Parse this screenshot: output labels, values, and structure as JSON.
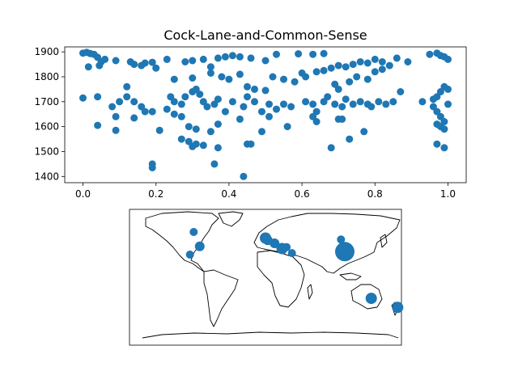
{
  "chart_data": [
    {
      "type": "scatter",
      "title": "Cock-Lane-and-Common-Sense",
      "xlabel": "",
      "ylabel": "",
      "xlim": [
        -0.05,
        1.05
      ],
      "ylim": [
        1375,
        1920
      ],
      "xticks": [
        "0.0",
        "0.2",
        "0.4",
        "0.6",
        "0.8",
        "1.0"
      ],
      "yticks": [
        "1400",
        "1500",
        "1600",
        "1700",
        "1800",
        "1900"
      ],
      "grid": false,
      "color": "#1f77b4",
      "points": [
        [
          0.0,
          1895
        ],
        [
          0.01,
          1898
        ],
        [
          0.02,
          1893
        ],
        [
          0.03,
          1890
        ],
        [
          0.04,
          1878
        ],
        [
          0.05,
          1860
        ],
        [
          0.06,
          1870
        ],
        [
          0.015,
          1840
        ],
        [
          0.045,
          1845
        ],
        [
          0.09,
          1865
        ],
        [
          0.13,
          1860
        ],
        [
          0.14,
          1850
        ],
        [
          0.16,
          1845
        ],
        [
          0.17,
          1855
        ],
        [
          0.19,
          1858
        ],
        [
          0.2,
          1835
        ],
        [
          0.23,
          1870
        ],
        [
          0.28,
          1860
        ],
        [
          0.3,
          1865
        ],
        [
          0.33,
          1870
        ],
        [
          0.35,
          1840
        ],
        [
          0.37,
          1875
        ],
        [
          0.39,
          1880
        ],
        [
          0.41,
          1885
        ],
        [
          0.43,
          1880
        ],
        [
          0.46,
          1875
        ],
        [
          0.5,
          1865
        ],
        [
          0.53,
          1890
        ],
        [
          0.59,
          1892
        ],
        [
          0.63,
          1890
        ],
        [
          0.66,
          1893
        ],
        [
          0.64,
          1820
        ],
        [
          0.66,
          1825
        ],
        [
          0.68,
          1835
        ],
        [
          0.7,
          1845
        ],
        [
          0.72,
          1840
        ],
        [
          0.74,
          1850
        ],
        [
          0.76,
          1860
        ],
        [
          0.78,
          1855
        ],
        [
          0.8,
          1870
        ],
        [
          0.82,
          1860
        ],
        [
          0.84,
          1845
        ],
        [
          0.86,
          1875
        ],
        [
          0.89,
          1860
        ],
        [
          0.95,
          1890
        ],
        [
          0.97,
          1895
        ],
        [
          0.98,
          1885
        ],
        [
          0.99,
          1880
        ],
        [
          1.0,
          1870
        ],
        [
          0.35,
          1815
        ],
        [
          0.38,
          1800
        ],
        [
          0.4,
          1790
        ],
        [
          0.43,
          1810
        ],
        [
          0.3,
          1795
        ],
        [
          0.25,
          1790
        ],
        [
          0.45,
          1760
        ],
        [
          0.47,
          1750
        ],
        [
          0.5,
          1745
        ],
        [
          0.52,
          1800
        ],
        [
          0.55,
          1790
        ],
        [
          0.58,
          1780
        ],
        [
          0.6,
          1815
        ],
        [
          0.61,
          1800
        ],
        [
          0.69,
          1770
        ],
        [
          0.7,
          1750
        ],
        [
          0.73,
          1780
        ],
        [
          0.75,
          1800
        ],
        [
          0.78,
          1790
        ],
        [
          0.8,
          1820
        ],
        [
          0.82,
          1830
        ],
        [
          0.87,
          1740
        ],
        [
          0.93,
          1700
        ],
        [
          0.96,
          1710
        ],
        [
          0.97,
          1720
        ],
        [
          0.98,
          1740
        ],
        [
          0.99,
          1760
        ],
        [
          1.0,
          1750
        ],
        [
          0.12,
          1760
        ],
        [
          0.1,
          1700
        ],
        [
          0.08,
          1680
        ],
        [
          0.12,
          1720
        ],
        [
          0.14,
          1700
        ],
        [
          0.16,
          1680
        ],
        [
          0.17,
          1660
        ],
        [
          0.24,
          1720
        ],
        [
          0.25,
          1700
        ],
        [
          0.27,
          1690
        ],
        [
          0.28,
          1720
        ],
        [
          0.3,
          1740
        ],
        [
          0.31,
          1750
        ],
        [
          0.32,
          1730
        ],
        [
          0.33,
          1700
        ],
        [
          0.34,
          1680
        ],
        [
          0.36,
          1690
        ],
        [
          0.37,
          1710
        ],
        [
          0.39,
          1660
        ],
        [
          0.41,
          1700
        ],
        [
          0.44,
          1680
        ],
        [
          0.45,
          1720
        ],
        [
          0.47,
          1700
        ],
        [
          0.49,
          1660
        ],
        [
          0.51,
          1690
        ],
        [
          0.53,
          1670
        ],
        [
          0.55,
          1690
        ],
        [
          0.57,
          1680
        ],
        [
          0.61,
          1700
        ],
        [
          0.63,
          1690
        ],
        [
          0.64,
          1660
        ],
        [
          0.66,
          1700
        ],
        [
          0.67,
          1720
        ],
        [
          0.69,
          1690
        ],
        [
          0.71,
          1680
        ],
        [
          0.72,
          1710
        ],
        [
          0.74,
          1690
        ],
        [
          0.76,
          1700
        ],
        [
          0.78,
          1690
        ],
        [
          0.79,
          1680
        ],
        [
          0.81,
          1700
        ],
        [
          0.83,
          1690
        ],
        [
          0.85,
          1700
        ],
        [
          0.96,
          1680
        ],
        [
          0.97,
          1660
        ],
        [
          0.98,
          1640
        ],
        [
          0.99,
          1620
        ],
        [
          1.0,
          1690
        ],
        [
          0.04,
          1720
        ],
        [
          0.0,
          1715
        ],
        [
          0.09,
          1640
        ],
        [
          0.14,
          1635
        ],
        [
          0.19,
          1660
        ],
        [
          0.23,
          1670
        ],
        [
          0.25,
          1650
        ],
        [
          0.27,
          1640
        ],
        [
          0.29,
          1600
        ],
        [
          0.31,
          1590
        ],
        [
          0.35,
          1580
        ],
        [
          0.37,
          1610
        ],
        [
          0.43,
          1630
        ],
        [
          0.49,
          1580
        ],
        [
          0.51,
          1640
        ],
        [
          0.56,
          1600
        ],
        [
          0.63,
          1640
        ],
        [
          0.64,
          1620
        ],
        [
          0.7,
          1630
        ],
        [
          0.71,
          1630
        ],
        [
          0.77,
          1580
        ],
        [
          0.97,
          1610
        ],
        [
          0.98,
          1600
        ],
        [
          0.99,
          1590
        ],
        [
          0.04,
          1605
        ],
        [
          0.09,
          1585
        ],
        [
          0.21,
          1585
        ],
        [
          0.27,
          1550
        ],
        [
          0.29,
          1540
        ],
        [
          0.3,
          1520
        ],
        [
          0.31,
          1530
        ],
        [
          0.33,
          1525
        ],
        [
          0.36,
          1450
        ],
        [
          0.37,
          1515
        ],
        [
          0.45,
          1530
        ],
        [
          0.46,
          1530
        ],
        [
          0.68,
          1515
        ],
        [
          0.73,
          1550
        ],
        [
          0.97,
          1530
        ],
        [
          0.99,
          1515
        ],
        [
          0.19,
          1450
        ],
        [
          0.19,
          1435
        ],
        [
          0.44,
          1400
        ]
      ]
    },
    {
      "type": "bubble-map",
      "projection": "plate-carree",
      "color": "#1f77b4",
      "points": [
        {
          "lon": -95,
          "lat": 60,
          "size": 5
        },
        {
          "lon": -87,
          "lat": 41,
          "size": 6
        },
        {
          "lon": -100,
          "lat": 30,
          "size": 5
        },
        {
          "lon": 0,
          "lat": 52,
          "size": 7
        },
        {
          "lon": 3,
          "lat": 49,
          "size": 6
        },
        {
          "lon": 12,
          "lat": 45,
          "size": 6
        },
        {
          "lon": 22,
          "lat": 38,
          "size": 7
        },
        {
          "lon": 28,
          "lat": 40,
          "size": 5
        },
        {
          "lon": 35,
          "lat": 32,
          "size": 5
        },
        {
          "lon": 100,
          "lat": 50,
          "size": 5
        },
        {
          "lon": 105,
          "lat": 34,
          "size": 12
        },
        {
          "lon": 140,
          "lat": -28,
          "size": 7
        },
        {
          "lon": 175,
          "lat": -40,
          "size": 7
        }
      ]
    }
  ]
}
